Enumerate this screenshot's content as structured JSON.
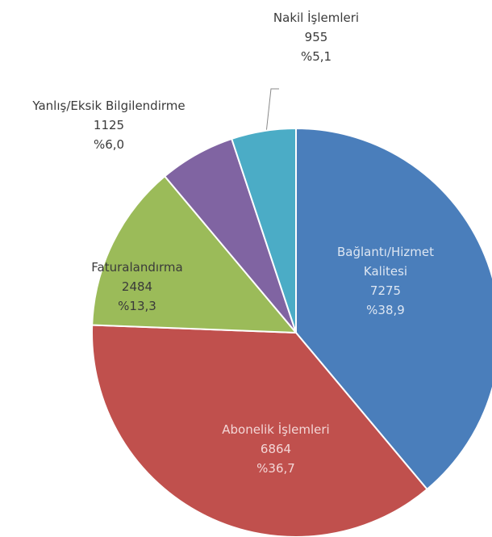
{
  "chart_data": {
    "type": "pie",
    "categories": [
      "Bağlantı/Hizmet Kalitesi",
      "Abonelik İşlemleri",
      "Faturalandırma",
      "Yanlış/Eksik Bilgilendirme",
      "Nakil İşlemleri"
    ],
    "values": [
      7275,
      6864,
      2484,
      1125,
      955
    ],
    "percentages": [
      38.9,
      36.7,
      13.3,
      6.0,
      5.1
    ],
    "percentage_labels": [
      "%38,9",
      "%36,7",
      "%13,3",
      "%6,0",
      "%5,1"
    ],
    "colors": [
      "#4a7ebb",
      "#c0504d",
      "#9bbb59",
      "#8064a2",
      "#4bacc6"
    ]
  }
}
